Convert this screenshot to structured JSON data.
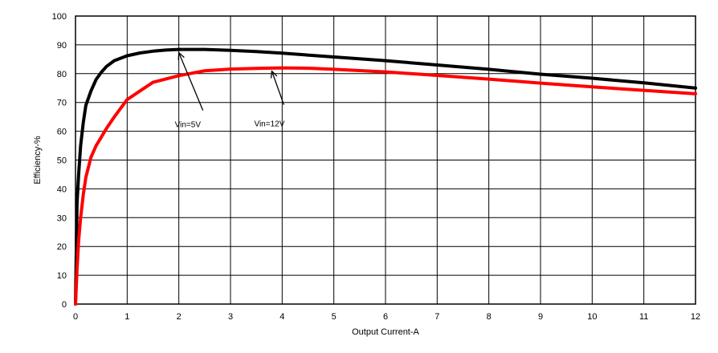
{
  "chart_data": {
    "type": "line",
    "title": "",
    "xlabel": "Output Current-A",
    "ylabel": "Efficiency-%",
    "xlim": [
      0,
      12
    ],
    "ylim": [
      0,
      100
    ],
    "xticks": [
      0,
      1,
      2,
      3,
      4,
      5,
      6,
      7,
      8,
      9,
      10,
      11,
      12
    ],
    "yticks": [
      0,
      10,
      20,
      30,
      40,
      50,
      60,
      70,
      80,
      90,
      100
    ],
    "grid": true,
    "legend": "none",
    "series": [
      {
        "name": "Vin=5V",
        "color": "#000000",
        "x": [
          0,
          0.03,
          0.06,
          0.1,
          0.15,
          0.2,
          0.3,
          0.4,
          0.5,
          0.6,
          0.75,
          1.0,
          1.25,
          1.5,
          1.75,
          2.0,
          2.5,
          3.0,
          3.5,
          4.0,
          5.0,
          6.0,
          7.0,
          8.0,
          9.0,
          10.0,
          11.0,
          12.0
        ],
        "y": [
          0,
          35,
          45,
          55,
          63,
          69,
          74,
          78,
          80.5,
          82.5,
          84.5,
          86.2,
          87.2,
          87.8,
          88.2,
          88.4,
          88.4,
          88.1,
          87.7,
          87.1,
          85.8,
          84.5,
          83.0,
          81.5,
          79.8,
          78.4,
          76.8,
          75.0
        ]
      },
      {
        "name": "Vin=12V",
        "color": "#ff0000",
        "x": [
          0,
          0.03,
          0.06,
          0.1,
          0.15,
          0.2,
          0.3,
          0.4,
          0.5,
          0.6,
          0.75,
          1.0,
          1.25,
          1.5,
          2.0,
          2.5,
          3.0,
          3.5,
          4.0,
          4.5,
          5.0,
          6.0,
          7.0,
          8.0,
          9.0,
          10.0,
          11.0,
          12.0
        ],
        "y": [
          0,
          12,
          22,
          30,
          38,
          44,
          51,
          55,
          58,
          61,
          65,
          71,
          74,
          77,
          79.3,
          81,
          81.6,
          81.8,
          82.0,
          81.9,
          81.5,
          80.6,
          79.4,
          78.1,
          76.7,
          75.4,
          74.2,
          73.0
        ]
      }
    ],
    "annotations": [
      {
        "text": "Vin=5V",
        "series": 0,
        "x": 2.0,
        "y": 88.4
      },
      {
        "text": "Vin=12V",
        "series": 1,
        "x": 3.8,
        "y": 82.0
      }
    ]
  }
}
